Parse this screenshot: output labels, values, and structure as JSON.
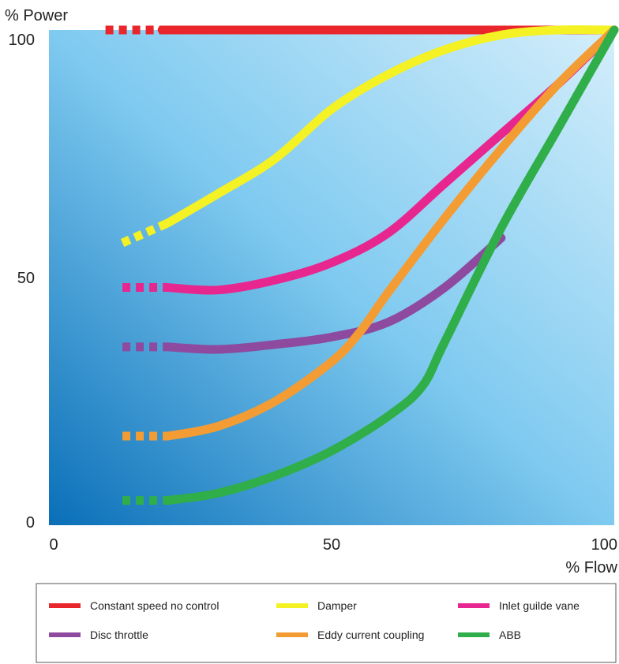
{
  "chart_data": {
    "type": "line",
    "ylabel": "% Power",
    "xlabel": "% Flow",
    "xlim": [
      0,
      100
    ],
    "ylim": [
      0,
      100
    ],
    "x_ticks": [
      "0",
      "50",
      "100"
    ],
    "y_ticks": [
      "0",
      "50",
      "100"
    ],
    "legend_placement": "bottom",
    "series": [
      {
        "name": "Constant speed no control",
        "color": "#e8262b",
        "dashed_x": [
          10,
          20
        ],
        "x": [
          20,
          40,
          60,
          80,
          100
        ],
        "y": [
          100,
          100,
          100,
          100,
          100
        ]
      },
      {
        "name": "Damper",
        "color": "#f4f125",
        "dashed_x": [
          13,
          21
        ],
        "x": [
          21,
          30,
          40,
          50,
          60,
          70,
          80,
          90,
          100
        ],
        "y": [
          61,
          67,
          74,
          84,
          91,
          96,
          99,
          100,
          100
        ]
      },
      {
        "name": "Inlet guilde vane",
        "color": "#e8268f",
        "dashed_x": [
          13,
          21
        ],
        "x": [
          21,
          30,
          40,
          50,
          60,
          70,
          80,
          90,
          100
        ],
        "y": [
          48,
          47.5,
          49.5,
          53,
          59,
          69,
          79,
          89,
          100
        ]
      },
      {
        "name": "Disc throttle",
        "color": "#8d4a9e",
        "dashed_x": [
          13,
          21
        ],
        "x": [
          21,
          30,
          40,
          50,
          60,
          70,
          80
        ],
        "y": [
          36,
          35.5,
          36.5,
          38,
          41,
          48,
          58
        ]
      },
      {
        "name": "Eddy current coupling",
        "color": "#f49c34",
        "dashed_x": [
          13,
          21
        ],
        "x": [
          21,
          30,
          40,
          50,
          55,
          60,
          70,
          80,
          90,
          100
        ],
        "y": [
          18,
          20,
          25,
          33,
          39,
          47,
          62,
          76,
          89,
          100
        ]
      },
      {
        "name": "ABB",
        "color": "#2fae4a",
        "dashed_x": [
          13,
          21
        ],
        "x": [
          21,
          30,
          40,
          50,
          60,
          66,
          70,
          80,
          90,
          100
        ],
        "y": [
          5,
          6.5,
          10,
          15,
          22,
          28,
          37,
          60,
          80,
          100
        ]
      }
    ]
  }
}
